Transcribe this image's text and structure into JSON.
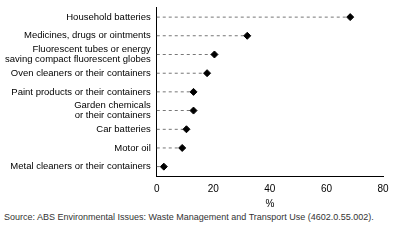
{
  "chart_data": {
    "type": "dot",
    "orientation": "horizontal",
    "categories": [
      "Household batteries",
      "Medicines, drugs or ointments",
      "Fluorescent tubes or energy saving compact fluorescent globes",
      "Oven cleaners or their containers",
      "Paint products or their containers",
      "Garden chemicals or their containers",
      "Car batteries",
      "Motor oil",
      "Metal cleaners or their containers"
    ],
    "values": [
      68.4,
      32,
      20.4,
      17.8,
      13,
      13,
      10.5,
      9,
      2.5
    ],
    "color": "#000000",
    "marker": "diamond",
    "line_style": "dashed",
    "x_label": "%",
    "xlim": [
      0,
      80
    ],
    "xticks": [
      0,
      20,
      40,
      60,
      80
    ],
    "grid": false,
    "source": "Source: ABS Environmental Issues: Waste Management and Transport Use (4602.0.55.002)."
  }
}
